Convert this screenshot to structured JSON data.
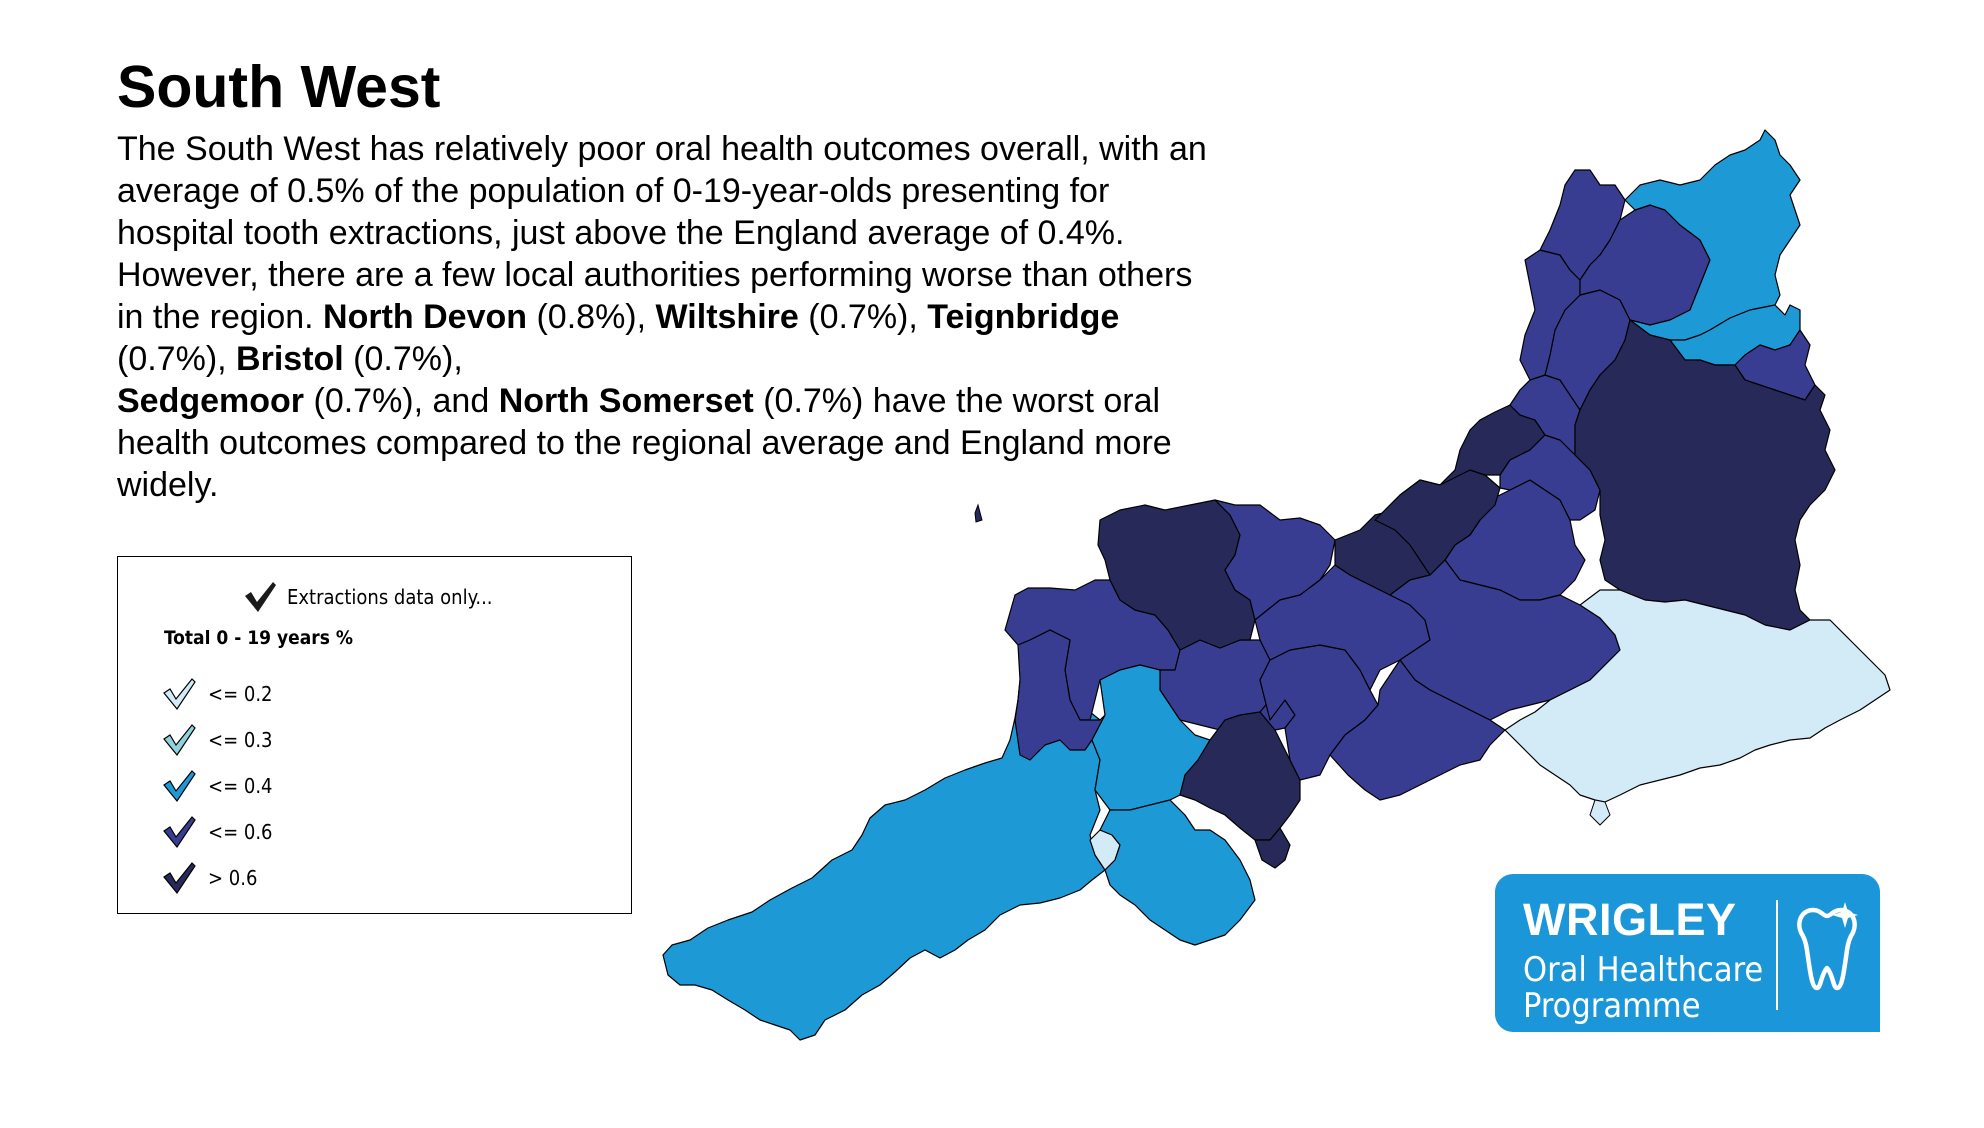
{
  "header": {
    "title": "South West"
  },
  "description": {
    "p1": "The South West has relatively poor oral health outcomes overall, with an average of 0.5% of the population of  0-19-year-olds presenting for hospital tooth extractions, just above the England average of 0.4%. However, there are a few local authorities performing worse than others in the region. ",
    "authorities": [
      {
        "name": "North Devon",
        "value": " (0.8%), "
      },
      {
        "name": "Wiltshire",
        "value": " (0.7%), "
      },
      {
        "name": "Teignbridge",
        "value": " (0.7%), "
      },
      {
        "name": "Bristol",
        "value": " (0.7%), "
      },
      {
        "name": "Sedgemoor",
        "value": " (0.7%), and "
      },
      {
        "name": "North Somerset",
        "value": " (0.7%) have the worst oral health outcomes compared to the regional average and England more widely."
      }
    ]
  },
  "legend": {
    "header": "Extractions data only...",
    "subtitle": "Total 0 - 19 years %",
    "header_icon": "check-icon",
    "items": [
      {
        "label": "<= 0.2",
        "color": "#d3eaf7"
      },
      {
        "label": "<= 0.3",
        "color": "#8fd1dd"
      },
      {
        "label": "<= 0.4",
        "color": "#1d9ad6"
      },
      {
        "label": "<= 0.6",
        "color": "#393d92"
      },
      {
        "label": "> 0.6",
        "color": "#272a59"
      }
    ]
  },
  "map": {
    "colors": {
      "le02": "#d3eaf7",
      "le03": "#8fd1dd",
      "le04": "#1d9ad6",
      "le06": "#393d92",
      "gt06": "#272a59"
    }
  },
  "logo": {
    "brand": "WRIGLEY",
    "line1": "Oral Healthcare",
    "line2": "Programme",
    "icon": "tooth-icon"
  }
}
